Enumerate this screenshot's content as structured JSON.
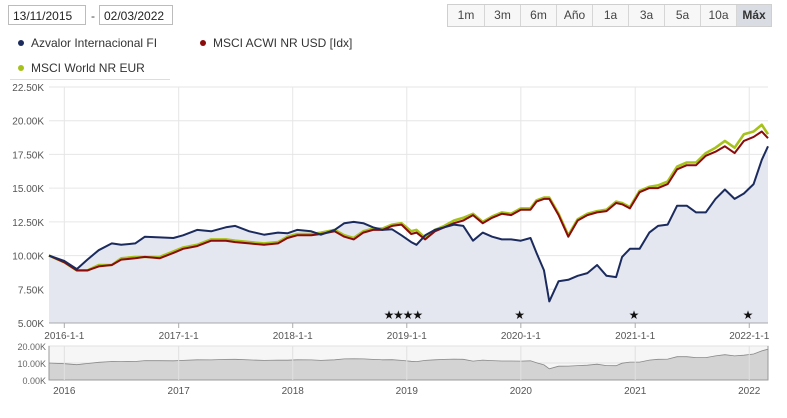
{
  "controls": {
    "start_date": "13/11/2015",
    "separator": "-",
    "end_date": "02/03/2022",
    "ranges": [
      "1m",
      "3m",
      "6m",
      "Año",
      "1a",
      "3a",
      "5a",
      "10a",
      "Máx"
    ],
    "active_range": "Máx"
  },
  "colors": {
    "azvalor": "#1b2b5e",
    "acwi": "#8b0b0b",
    "world": "#a6c21a",
    "area_fill": "#e4e7f0",
    "navigator_fill": "#d3d3d3"
  },
  "chart_data": {
    "type": "line",
    "x_type": "date",
    "xlim": [
      "2015-11-13",
      "2022-03-02"
    ],
    "ylim": [
      5000,
      22500
    ],
    "ytick_labels": [
      "5.00K",
      "7.50K",
      "10.00K",
      "12.50K",
      "15.00K",
      "17.50K",
      "20.00K",
      "22.50K"
    ],
    "yticks": [
      5000,
      7500,
      10000,
      12500,
      15000,
      17500,
      20000,
      22500
    ],
    "xtick_labels": [
      "2016-1-1",
      "2017-1-1",
      "2018-1-1",
      "2019-1-1",
      "2020-1-1",
      "2021-1-1",
      "2022-1-1"
    ],
    "xticks": [
      "2016-01-01",
      "2017-01-01",
      "2018-01-01",
      "2019-01-01",
      "2020-01-01",
      "2021-01-01",
      "2022-01-01"
    ],
    "grid": true,
    "legend_position": "top-left",
    "series": [
      {
        "name": "Azvalor Internacional FI",
        "color_key": "azvalor",
        "area": true,
        "points": [
          [
            "2015-11-13",
            10000
          ],
          [
            "2016-01-01",
            9600
          ],
          [
            "2016-02-10",
            9000
          ],
          [
            "2016-03-15",
            9700
          ],
          [
            "2016-04-20",
            10400
          ],
          [
            "2016-06-01",
            10900
          ],
          [
            "2016-07-01",
            10800
          ],
          [
            "2016-08-15",
            10900
          ],
          [
            "2016-09-15",
            11400
          ],
          [
            "2016-11-01",
            11350
          ],
          [
            "2016-12-15",
            11300
          ],
          [
            "2017-01-15",
            11500
          ],
          [
            "2017-03-01",
            11900
          ],
          [
            "2017-04-15",
            11800
          ],
          [
            "2017-06-01",
            12100
          ],
          [
            "2017-07-01",
            12200
          ],
          [
            "2017-08-15",
            11800
          ],
          [
            "2017-10-01",
            11550
          ],
          [
            "2017-11-15",
            11700
          ],
          [
            "2017-12-15",
            11650
          ],
          [
            "2018-01-15",
            11900
          ],
          [
            "2018-03-01",
            11800
          ],
          [
            "2018-04-01",
            11550
          ],
          [
            "2018-05-15",
            11900
          ],
          [
            "2018-06-15",
            12400
          ],
          [
            "2018-07-15",
            12500
          ],
          [
            "2018-08-15",
            12400
          ],
          [
            "2018-09-15",
            12100
          ],
          [
            "2018-10-15",
            11900
          ],
          [
            "2018-11-15",
            11950
          ],
          [
            "2018-12-15",
            11500
          ],
          [
            "2019-01-15",
            11000
          ],
          [
            "2019-02-01",
            10800
          ],
          [
            "2019-03-01",
            11500
          ],
          [
            "2019-04-01",
            11900
          ],
          [
            "2019-05-01",
            12100
          ],
          [
            "2019-06-01",
            12300
          ],
          [
            "2019-07-01",
            12200
          ],
          [
            "2019-08-01",
            11100
          ],
          [
            "2019-09-01",
            11700
          ],
          [
            "2019-10-01",
            11400
          ],
          [
            "2019-11-01",
            11200
          ],
          [
            "2019-12-01",
            11200
          ],
          [
            "2020-01-01",
            11100
          ],
          [
            "2020-02-01",
            11300
          ],
          [
            "2020-02-20",
            10200
          ],
          [
            "2020-03-15",
            8900
          ],
          [
            "2020-04-01",
            6600
          ],
          [
            "2020-05-01",
            8100
          ],
          [
            "2020-06-01",
            8200
          ],
          [
            "2020-07-01",
            8500
          ],
          [
            "2020-08-01",
            8700
          ],
          [
            "2020-09-01",
            9300
          ],
          [
            "2020-10-01",
            8500
          ],
          [
            "2020-11-01",
            8400
          ],
          [
            "2020-11-20",
            9900
          ],
          [
            "2020-12-15",
            10500
          ],
          [
            "2021-01-15",
            10500
          ],
          [
            "2021-02-15",
            11700
          ],
          [
            "2021-03-15",
            12200
          ],
          [
            "2021-04-15",
            12300
          ],
          [
            "2021-05-15",
            13700
          ],
          [
            "2021-06-15",
            13700
          ],
          [
            "2021-07-15",
            13200
          ],
          [
            "2021-08-15",
            13200
          ],
          [
            "2021-09-15",
            14200
          ],
          [
            "2021-10-15",
            14900
          ],
          [
            "2021-11-15",
            14200
          ],
          [
            "2021-12-15",
            14600
          ],
          [
            "2022-01-15",
            15300
          ],
          [
            "2022-02-10",
            17100
          ],
          [
            "2022-03-02",
            18100
          ]
        ]
      },
      {
        "name": "MSCI ACWI NR USD [Idx]",
        "color_key": "acwi",
        "area": false,
        "points": [
          [
            "2015-11-13",
            10000
          ],
          [
            "2016-01-01",
            9500
          ],
          [
            "2016-02-10",
            8900
          ],
          [
            "2016-03-15",
            8900
          ],
          [
            "2016-04-20",
            9200
          ],
          [
            "2016-06-01",
            9300
          ],
          [
            "2016-07-01",
            9700
          ],
          [
            "2016-08-15",
            9800
          ],
          [
            "2016-09-15",
            9900
          ],
          [
            "2016-11-01",
            9800
          ],
          [
            "2016-12-15",
            10200
          ],
          [
            "2017-01-15",
            10500
          ],
          [
            "2017-03-01",
            10700
          ],
          [
            "2017-04-15",
            11100
          ],
          [
            "2017-06-01",
            11100
          ],
          [
            "2017-07-01",
            11000
          ],
          [
            "2017-08-15",
            10900
          ],
          [
            "2017-10-01",
            10800
          ],
          [
            "2017-11-15",
            10900
          ],
          [
            "2017-12-15",
            11300
          ],
          [
            "2018-01-15",
            11500
          ],
          [
            "2018-03-01",
            11500
          ],
          [
            "2018-04-01",
            11600
          ],
          [
            "2018-05-15",
            11800
          ],
          [
            "2018-06-15",
            11400
          ],
          [
            "2018-07-15",
            11200
          ],
          [
            "2018-08-15",
            11700
          ],
          [
            "2018-09-15",
            11900
          ],
          [
            "2018-10-15",
            11900
          ],
          [
            "2018-11-15",
            12200
          ],
          [
            "2018-12-15",
            12300
          ],
          [
            "2019-01-15",
            11600
          ],
          [
            "2019-02-01",
            11700
          ],
          [
            "2019-03-01",
            11200
          ],
          [
            "2019-04-01",
            11800
          ],
          [
            "2019-05-01",
            12100
          ],
          [
            "2019-06-01",
            12400
          ],
          [
            "2019-07-01",
            12600
          ],
          [
            "2019-08-01",
            13000
          ],
          [
            "2019-09-01",
            12400
          ],
          [
            "2019-10-01",
            12800
          ],
          [
            "2019-11-01",
            13100
          ],
          [
            "2019-12-01",
            13000
          ],
          [
            "2020-01-01",
            13400
          ],
          [
            "2020-02-01",
            13400
          ],
          [
            "2020-02-20",
            14000
          ],
          [
            "2020-03-15",
            14200
          ],
          [
            "2020-04-01",
            14200
          ],
          [
            "2020-05-01",
            13000
          ],
          [
            "2020-06-01",
            11400
          ],
          [
            "2020-07-01",
            12600
          ],
          [
            "2020-08-01",
            13000
          ],
          [
            "2020-09-01",
            13200
          ],
          [
            "2020-10-01",
            13300
          ],
          [
            "2020-11-01",
            13900
          ],
          [
            "2020-11-20",
            13800
          ],
          [
            "2020-12-15",
            13500
          ],
          [
            "2021-01-15",
            14700
          ],
          [
            "2021-02-15",
            15000
          ],
          [
            "2021-03-15",
            15000
          ],
          [
            "2021-04-15",
            15300
          ],
          [
            "2021-05-15",
            16400
          ],
          [
            "2021-06-15",
            16700
          ],
          [
            "2021-07-15",
            16700
          ],
          [
            "2021-08-15",
            17400
          ],
          [
            "2021-09-15",
            17700
          ],
          [
            "2021-10-15",
            18100
          ],
          [
            "2021-11-15",
            17600
          ],
          [
            "2021-12-15",
            18500
          ],
          [
            "2022-01-15",
            18800
          ],
          [
            "2022-02-10",
            19200
          ],
          [
            "2022-03-02",
            18700
          ]
        ]
      },
      {
        "name": "MSCI World NR EUR",
        "color_key": "world",
        "area": false,
        "points": [
          [
            "2015-11-13",
            10000
          ],
          [
            "2016-01-01",
            9500
          ],
          [
            "2016-02-10",
            8900
          ],
          [
            "2016-03-15",
            8900
          ],
          [
            "2016-04-20",
            9300
          ],
          [
            "2016-06-01",
            9300
          ],
          [
            "2016-07-01",
            9800
          ],
          [
            "2016-08-15",
            9900
          ],
          [
            "2016-09-15",
            9900
          ],
          [
            "2016-11-01",
            9900
          ],
          [
            "2016-12-15",
            10300
          ],
          [
            "2017-01-15",
            10600
          ],
          [
            "2017-03-01",
            10800
          ],
          [
            "2017-04-15",
            11200
          ],
          [
            "2017-06-01",
            11200
          ],
          [
            "2017-07-01",
            11100
          ],
          [
            "2017-08-15",
            11000
          ],
          [
            "2017-10-01",
            10900
          ],
          [
            "2017-11-15",
            11000
          ],
          [
            "2017-12-15",
            11400
          ],
          [
            "2018-01-15",
            11600
          ],
          [
            "2018-03-01",
            11600
          ],
          [
            "2018-04-01",
            11700
          ],
          [
            "2018-05-15",
            11900
          ],
          [
            "2018-06-15",
            11500
          ],
          [
            "2018-07-15",
            11300
          ],
          [
            "2018-08-15",
            11800
          ],
          [
            "2018-09-15",
            12000
          ],
          [
            "2018-10-15",
            12000
          ],
          [
            "2018-11-15",
            12300
          ],
          [
            "2018-12-15",
            12400
          ],
          [
            "2019-01-15",
            11800
          ],
          [
            "2019-02-01",
            11900
          ],
          [
            "2019-03-01",
            11300
          ],
          [
            "2019-04-01",
            11900
          ],
          [
            "2019-05-01",
            12200
          ],
          [
            "2019-06-01",
            12600
          ],
          [
            "2019-07-01",
            12800
          ],
          [
            "2019-08-01",
            13100
          ],
          [
            "2019-09-01",
            12500
          ],
          [
            "2019-10-01",
            12900
          ],
          [
            "2019-11-01",
            13200
          ],
          [
            "2019-12-01",
            13100
          ],
          [
            "2020-01-01",
            13500
          ],
          [
            "2020-02-01",
            13500
          ],
          [
            "2020-02-20",
            14100
          ],
          [
            "2020-03-15",
            14300
          ],
          [
            "2020-04-01",
            14300
          ],
          [
            "2020-05-01",
            13100
          ],
          [
            "2020-06-01",
            11500
          ],
          [
            "2020-07-01",
            12700
          ],
          [
            "2020-08-01",
            13100
          ],
          [
            "2020-09-01",
            13300
          ],
          [
            "2020-10-01",
            13400
          ],
          [
            "2020-11-01",
            14000
          ],
          [
            "2020-11-20",
            13900
          ],
          [
            "2020-12-15",
            13600
          ],
          [
            "2021-01-15",
            14800
          ],
          [
            "2021-02-15",
            15100
          ],
          [
            "2021-03-15",
            15200
          ],
          [
            "2021-04-15",
            15500
          ],
          [
            "2021-05-15",
            16600
          ],
          [
            "2021-06-15",
            16900
          ],
          [
            "2021-07-15",
            16900
          ],
          [
            "2021-08-15",
            17600
          ],
          [
            "2021-09-15",
            18000
          ],
          [
            "2021-10-15",
            18500
          ],
          [
            "2021-11-15",
            18000
          ],
          [
            "2021-12-15",
            19000
          ],
          [
            "2022-01-15",
            19200
          ],
          [
            "2022-02-10",
            19700
          ],
          [
            "2022-03-02",
            19000
          ]
        ]
      }
    ],
    "star_markers": [
      "2018-11-05",
      "2018-12-05",
      "2019-01-05",
      "2019-02-05",
      "2019-12-28",
      "2020-12-28",
      "2021-12-28"
    ],
    "star_symbol": "★",
    "navigator": {
      "ylim": [
        0,
        20000
      ],
      "ytick_labels": [
        "0.00K",
        "10.00K",
        "20.00K"
      ],
      "yticks": [
        0,
        10000,
        20000
      ],
      "xtick_labels": [
        "2016",
        "2017",
        "2018",
        "2019",
        "2020",
        "2021",
        "2022"
      ],
      "xticks": [
        "2016-01-01",
        "2017-01-01",
        "2018-01-01",
        "2019-01-01",
        "2020-01-01",
        "2021-01-01",
        "2022-01-01"
      ]
    }
  }
}
